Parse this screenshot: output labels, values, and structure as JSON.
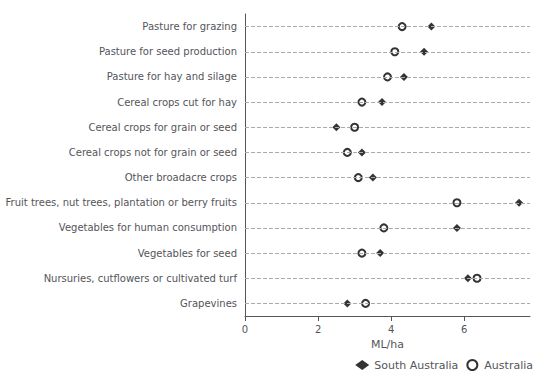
{
  "chart_data": {
    "type": "scatter",
    "orientation": "horizontal",
    "categories": [
      "Pasture for grazing",
      "Pasture for seed production",
      "Pasture for hay and silage",
      "Cereal crops cut for hay",
      "Cereal crops for grain or seed",
      "Cereal crops not for grain or seed",
      "Other broadacre crops",
      "Fruit trees, nut trees, plantation or berry fruits",
      "Vegetables for human consumption",
      "Vegetables for seed",
      "Nursuries, cutflowers or cultivated turf",
      "Grapevines"
    ],
    "series": [
      {
        "name": "South Australia",
        "color": "#000000",
        "marker": "diamond",
        "values": [
          5.1,
          4.9,
          4.35,
          3.75,
          2.5,
          3.2,
          3.5,
          7.5,
          5.8,
          3.7,
          6.1,
          2.8
        ]
      },
      {
        "name": "Australia",
        "color": "#000000",
        "marker": "hollow_circle",
        "values": [
          4.3,
          4.1,
          3.9,
          3.2,
          3.0,
          2.8,
          3.1,
          5.8,
          3.8,
          3.2,
          6.35,
          3.3
        ]
      }
    ],
    "xlabel": "ML/ha",
    "xlim": [
      0,
      7.8
    ],
    "xticks": [
      0,
      2,
      4,
      6
    ],
    "grid": "y",
    "line_style": "dashed",
    "legend": "lower right"
  }
}
